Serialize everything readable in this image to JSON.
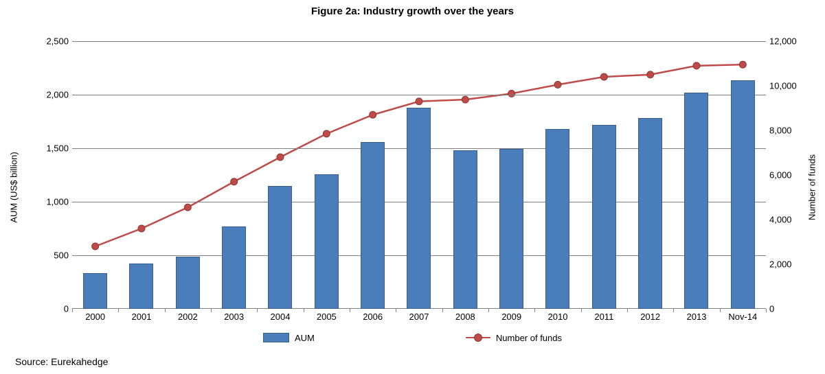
{
  "figure": {
    "title": "Figure 2a: Industry growth over the years",
    "title_fontsize": 15,
    "title_fontweight": "bold",
    "source": "Source: Eurekahedge",
    "source_fontsize": 14,
    "background_color": "#ffffff",
    "axis_color": "#808080",
    "grid_color": "#808080",
    "label_fontsize": 13,
    "tick_fontsize": 13,
    "y_left": {
      "label": "AUM (US$ billion)",
      "min": 0,
      "max": 2500,
      "tick_step": 500,
      "ticks": [
        "0",
        "500",
        "1,000",
        "1,500",
        "2,000",
        "2,500"
      ]
    },
    "y_right": {
      "label": "Number of funds",
      "min": 0,
      "max": 12000,
      "tick_step": 2000,
      "ticks": [
        "0",
        "2,000",
        "4,000",
        "6,000",
        "8,000",
        "10,000",
        "12,000"
      ]
    },
    "categories": [
      "2000",
      "2001",
      "2002",
      "2003",
      "2004",
      "2005",
      "2006",
      "2007",
      "2008",
      "2009",
      "2010",
      "2011",
      "2012",
      "2013",
      "Nov-14"
    ],
    "series_bar": {
      "name": "AUM",
      "color_fill": "#4a7ebb",
      "color_border": "#385d8a",
      "values": [
        335,
        425,
        485,
        770,
        1150,
        1255,
        1555,
        1880,
        1480,
        1495,
        1680,
        1720,
        1785,
        2020,
        2135
      ],
      "bar_width_ratio": 0.52
    },
    "series_line": {
      "name": "Number of funds",
      "line_color": "#be4b48",
      "marker_fill": "#be4b48",
      "marker_border": "#8c3836",
      "marker_radius": 5,
      "line_width": 2.5,
      "values": [
        2800,
        3600,
        4550,
        5700,
        6800,
        7850,
        8700,
        9300,
        9380,
        9650,
        10050,
        10400,
        10500,
        10900,
        10950
      ]
    },
    "legend": {
      "items": [
        "AUM",
        "Number of funds"
      ],
      "fontsize": 13
    }
  }
}
